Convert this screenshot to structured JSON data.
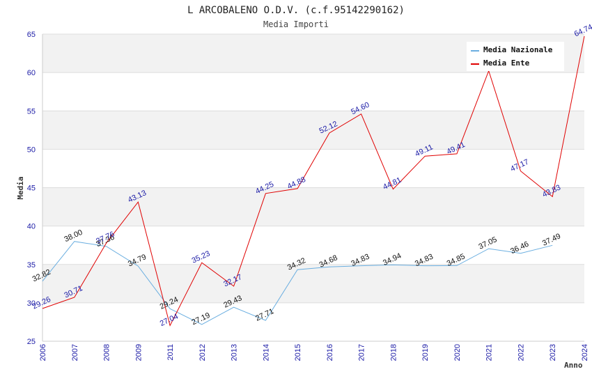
{
  "chart_data": {
    "type": "line",
    "title": "L ARCOBALENO O.D.V. (c.f.95142290162)",
    "subtitle": "Media Importi",
    "xlabel": "Anno",
    "ylabel": "Media",
    "ylim": [
      25,
      65
    ],
    "yticks": [
      25,
      30,
      35,
      40,
      45,
      50,
      55,
      60,
      65
    ],
    "x": [
      "2006",
      "2007",
      "2008",
      "2009",
      "2011",
      "2012",
      "2013",
      "2014",
      "2015",
      "2016",
      "2017",
      "2018",
      "2019",
      "2020",
      "2021",
      "2022",
      "2023",
      "2024"
    ],
    "grid": true,
    "legend_position": "top-right",
    "series": [
      {
        "name": "Media Nazionale",
        "color": "#6aaee0",
        "values": [
          32.82,
          38.0,
          37.36,
          34.79,
          29.24,
          27.19,
          29.43,
          27.71,
          34.32,
          34.68,
          34.83,
          34.94,
          34.83,
          34.85,
          37.05,
          36.46,
          37.49,
          null
        ],
        "labels": [
          "32.82",
          "38.00",
          "37.36",
          "34.79",
          "29.24",
          "27.19",
          "29.43",
          "27.71",
          "34.32",
          "34.68",
          "34.83",
          "34.94",
          "34.83",
          "34.85",
          "37.05",
          "36.46",
          "37.49",
          ""
        ]
      },
      {
        "name": "Media Ente",
        "color": "#e00000",
        "values": [
          29.26,
          30.71,
          37.76,
          43.13,
          27.04,
          35.23,
          32.17,
          44.25,
          44.88,
          52.12,
          54.6,
          44.81,
          49.11,
          49.41,
          60.22,
          47.17,
          43.83,
          64.74
        ],
        "labels": [
          "29.26",
          "30.71",
          "37.76",
          "43.13",
          "27.04",
          "35.23",
          "32.17",
          "44.25",
          "44.88",
          "52.12",
          "54.60",
          "44.81",
          "49.11",
          "49.41",
          "",
          "47.17",
          "43.83",
          "64.74"
        ]
      }
    ]
  }
}
